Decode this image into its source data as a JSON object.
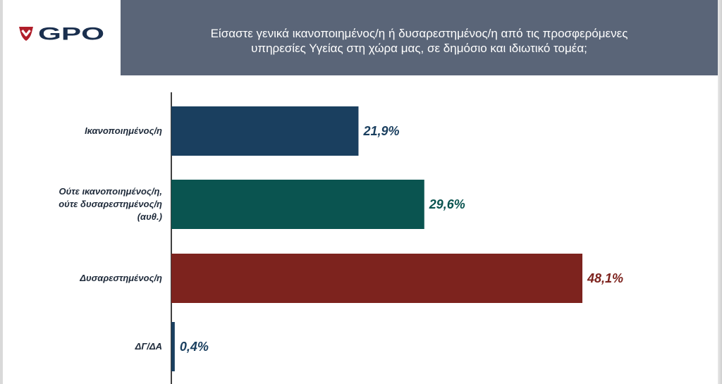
{
  "header": {
    "logo_text": "GPO",
    "question_line1": "Είσαστε γενικά ικανοποιημένος/η ή δυσαρεστημένος/η από τις προσφερόμενες",
    "question_line2": "υπηρεσίες Υγείας στη χώρα μας, σε δημόσιο και ιδιωτικό τομέα;"
  },
  "colors": {
    "header_bg": "#5a6578",
    "logo_red": "#b01e2a",
    "logo_navy": "#1a2f4e"
  },
  "chart_data": {
    "type": "bar",
    "orientation": "horizontal",
    "title": "",
    "xlabel": "",
    "ylabel": "",
    "xlim": [
      0,
      50
    ],
    "grid": false,
    "legend": "none",
    "categories": [
      [
        "Ικανοποιημένος/η"
      ],
      [
        "Ούτε ικανοποιημένος/η,",
        "ούτε δυσαρεστημένος/η",
        "(αυθ.)"
      ],
      [
        "Δυσαρεστημένος/η"
      ],
      [
        "ΔΓ/ΔΑ"
      ]
    ],
    "values": [
      21.9,
      29.6,
      48.1,
      0.4
    ],
    "value_labels": [
      "21,9%",
      "29,6%",
      "48,1%",
      "0,4%"
    ],
    "bar_colors": [
      "#1a3f5f",
      "#0a5450",
      "#7d231e",
      "#1a3f5f"
    ],
    "label_colors": [
      "#1a3f5f",
      "#0a5450",
      "#7d231e",
      "#1a3f5f"
    ]
  }
}
